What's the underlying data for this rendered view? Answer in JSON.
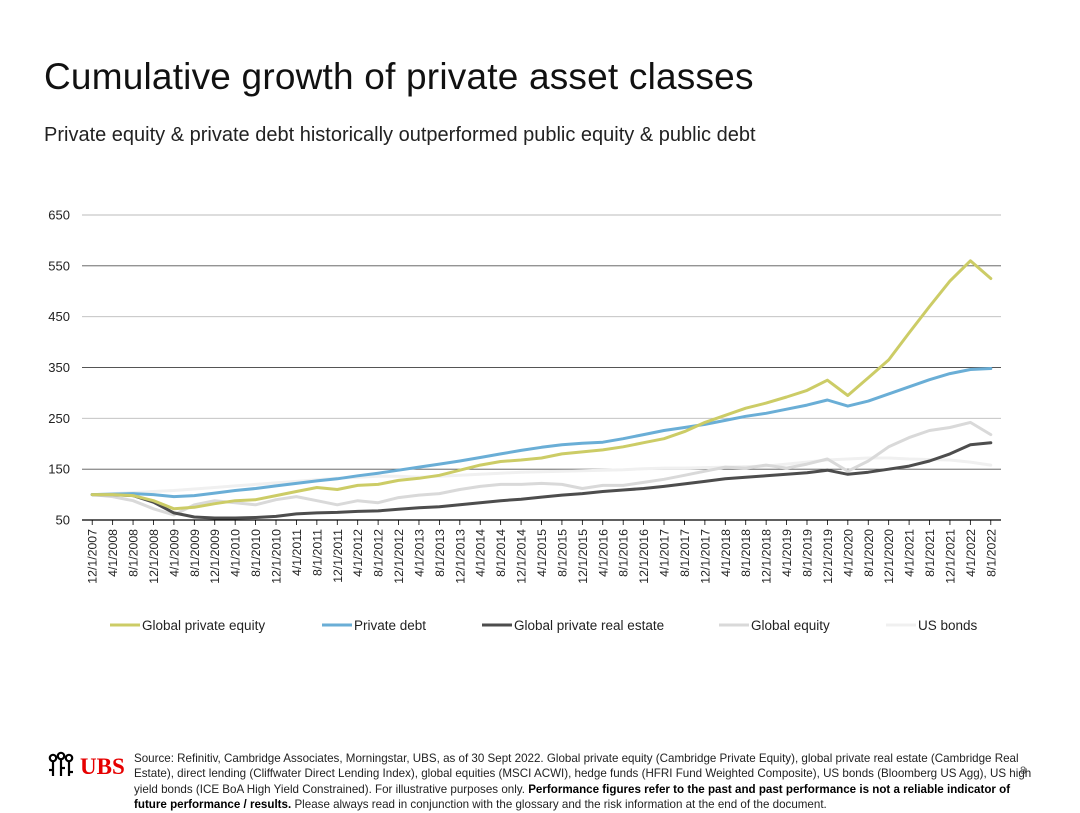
{
  "title": "Cumulative growth of private asset classes",
  "subtitle": "Private equity & private debt historically outperformed public equity & public debt",
  "footer": {
    "logo_text": "UBS",
    "source": "Source: Refinitiv, Cambridge Associates, Morningstar, UBS, as of 30 Sept 2022. Global private equity (Cambridge Private Equity), global private real estate (Cambridge Real Estate), direct lending (Cliffwater Direct Lending Index), global equities (MSCI ACWI), hedge funds (HFRI Fund Weighted Composite), US bonds (Bloomberg US Agg), US high yield bonds (ICE BoA High Yield Constrained). For illustrative purposes only.",
    "disclaimer_bold": "Performance figures refer to the past and past performance is not a reliable indicator of future performance / results.",
    "disclaimer_rest": "Please always read in conjunction with the glossary and the risk information at the end of the document.",
    "page_number": "8"
  },
  "chart_data": {
    "type": "line",
    "title": "",
    "xlabel": "",
    "ylabel": "",
    "ylim": [
      50,
      650
    ],
    "yticks": [
      50,
      150,
      250,
      350,
      450,
      550,
      650
    ],
    "grid": true,
    "legend_position": "bottom",
    "x": [
      "12/1/2007",
      "4/1/2008",
      "8/1/2008",
      "12/1/2008",
      "4/1/2009",
      "8/1/2009",
      "12/1/2009",
      "4/1/2010",
      "8/1/2010",
      "12/1/2010",
      "4/1/2011",
      "8/1/2011",
      "12/1/2011",
      "4/1/2012",
      "8/1/2012",
      "12/1/2012",
      "4/1/2013",
      "8/1/2013",
      "12/1/2013",
      "4/1/2014",
      "8/1/2014",
      "12/1/2014",
      "4/1/2015",
      "8/1/2015",
      "12/1/2015",
      "4/1/2016",
      "8/1/2016",
      "12/1/2016",
      "4/1/2017",
      "8/1/2017",
      "12/1/2017",
      "4/1/2018",
      "8/1/2018",
      "12/1/2018",
      "4/1/2019",
      "8/1/2019",
      "12/1/2019",
      "4/1/2020",
      "8/1/2020",
      "12/1/2020",
      "4/1/2021",
      "8/1/2021",
      "12/1/2021",
      "4/1/2022",
      "8/1/2022"
    ],
    "series": [
      {
        "name": "Global private equity",
        "color": "#cccc66",
        "values": [
          100,
          100,
          98,
          88,
          72,
          75,
          82,
          88,
          90,
          98,
          106,
          114,
          110,
          118,
          120,
          128,
          132,
          138,
          148,
          158,
          165,
          168,
          172,
          180,
          184,
          188,
          194,
          202,
          210,
          224,
          242,
          256,
          270,
          280,
          292,
          305,
          325,
          295,
          330,
          365,
          418,
          470,
          520,
          560,
          525
        ]
      },
      {
        "name": "Private debt",
        "color": "#6aaed6",
        "values": [
          100,
          101,
          102,
          100,
          96,
          98,
          103,
          108,
          112,
          117,
          122,
          127,
          131,
          137,
          142,
          148,
          154,
          160,
          166,
          173,
          180,
          187,
          193,
          198,
          201,
          203,
          210,
          218,
          226,
          232,
          238,
          246,
          254,
          260,
          268,
          276,
          286,
          274,
          284,
          298,
          312,
          326,
          338,
          346,
          348
        ]
      },
      {
        "name": "Global private real estate",
        "color": "#4d4d4d",
        "values": [
          100,
          100,
          98,
          85,
          64,
          56,
          54,
          54,
          55,
          57,
          62,
          64,
          65,
          67,
          68,
          71,
          74,
          76,
          80,
          84,
          88,
          91,
          95,
          99,
          102,
          106,
          109,
          112,
          116,
          121,
          126,
          131,
          134,
          137,
          140,
          143,
          148,
          140,
          144,
          150,
          156,
          166,
          180,
          198,
          202
        ]
      },
      {
        "name": "Global equity",
        "color": "#d9d9d9",
        "values": [
          100,
          96,
          88,
          72,
          60,
          80,
          88,
          84,
          80,
          90,
          96,
          88,
          80,
          88,
          84,
          94,
          99,
          102,
          110,
          116,
          120,
          120,
          122,
          120,
          112,
          118,
          118,
          124,
          130,
          138,
          146,
          154,
          152,
          158,
          152,
          160,
          170,
          146,
          166,
          194,
          212,
          226,
          232,
          242,
          218
        ]
      },
      {
        "name": "US bonds",
        "color": "#f0f0f0",
        "values": [
          100,
          102,
          104,
          106,
          108,
          111,
          114,
          117,
          120,
          123,
          126,
          129,
          132,
          134,
          136,
          136,
          134,
          136,
          138,
          140,
          142,
          144,
          145,
          146,
          147,
          148,
          149,
          151,
          152,
          152,
          153,
          154,
          155,
          156,
          160,
          164,
          168,
          170,
          172,
          172,
          170,
          169,
          168,
          164,
          158
        ]
      }
    ]
  }
}
